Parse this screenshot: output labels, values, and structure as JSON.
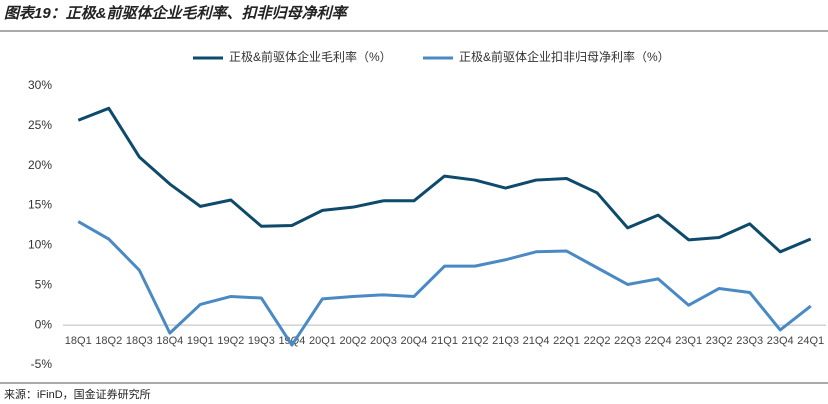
{
  "chart_data": {
    "type": "line",
    "title": "图表19：正极&前驱体企业毛利率、扣非归母净利率",
    "source": "来源：iFinD，国金证券研究所",
    "categories": [
      "18Q1",
      "18Q2",
      "18Q3",
      "18Q4",
      "19Q1",
      "19Q2",
      "19Q3",
      "19Q4",
      "20Q1",
      "20Q2",
      "20Q3",
      "20Q4",
      "21Q1",
      "21Q2",
      "21Q3",
      "21Q4",
      "22Q1",
      "22Q2",
      "22Q3",
      "22Q4",
      "23Q1",
      "23Q2",
      "23Q3",
      "23Q4",
      "24Q1"
    ],
    "series": [
      {
        "name": "正极&前驱体企业毛利率（%）",
        "color": "#0e4a6b",
        "values": [
          25.7,
          27.2,
          21.1,
          17.7,
          14.9,
          15.7,
          12.4,
          12.5,
          14.4,
          14.8,
          15.6,
          15.6,
          18.7,
          18.2,
          17.2,
          18.2,
          18.4,
          16.6,
          12.2,
          13.8,
          10.7,
          11.0,
          12.7,
          9.2,
          10.8
        ]
      },
      {
        "name": "正极&前驱体企业扣非归母净利率（%）",
        "color": "#4a8ac4",
        "values": [
          13.0,
          10.8,
          6.9,
          -1.0,
          2.6,
          3.6,
          3.4,
          -2.5,
          3.3,
          3.6,
          3.8,
          3.6,
          7.4,
          7.4,
          8.2,
          9.2,
          9.3,
          7.2,
          5.1,
          5.8,
          2.5,
          4.6,
          4.1,
          -0.6,
          2.4
        ]
      }
    ],
    "ylim": [
      -5,
      30
    ],
    "yticks": [
      {
        "value": -5,
        "label": "-5%"
      },
      {
        "value": 0,
        "label": "0%"
      },
      {
        "value": 5,
        "label": "5%"
      },
      {
        "value": 10,
        "label": "10%"
      },
      {
        "value": 15,
        "label": "15%"
      },
      {
        "value": 20,
        "label": "20%"
      },
      {
        "value": 25,
        "label": "25%"
      },
      {
        "value": 30,
        "label": "30%"
      }
    ],
    "grid": false,
    "legend": "top"
  }
}
